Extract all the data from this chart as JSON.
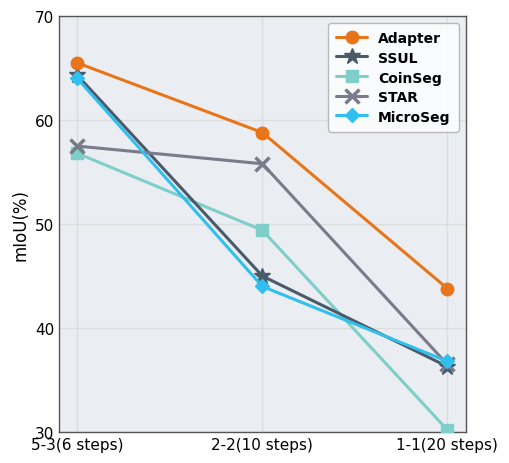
{
  "x_labels": [
    "5-3(6 steps)",
    "2-2(10 steps)",
    "1-1(20 steps)"
  ],
  "series": [
    {
      "name": "Adapter",
      "values": [
        65.5,
        58.8,
        43.8
      ],
      "color": "#E8751A",
      "marker": "o",
      "linewidth": 2.2,
      "markersize": 9,
      "zorder": 5
    },
    {
      "name": "SSUL",
      "values": [
        64.3,
        45.0,
        36.3
      ],
      "color": "#4A5A6A",
      "marker": "*",
      "linewidth": 2.2,
      "markersize": 12,
      "zorder": 4
    },
    {
      "name": "CoinSeg",
      "values": [
        56.8,
        49.4,
        30.2
      ],
      "color": "#7ECECA",
      "marker": "s",
      "linewidth": 2.2,
      "markersize": 8,
      "zorder": 3
    },
    {
      "name": "STAR",
      "values": [
        57.5,
        55.8,
        36.5
      ],
      "color": "#7A7A8A",
      "marker": "x",
      "linewidth": 2.2,
      "markersize": 10,
      "markeredgewidth": 2.5,
      "zorder": 4
    },
    {
      "name": "MicroSeg",
      "values": [
        64.0,
        44.0,
        36.8
      ],
      "color": "#30BFEF",
      "marker": "D",
      "linewidth": 2.2,
      "markersize": 7,
      "zorder": 5
    }
  ],
  "ylabel": "mIoU(%)",
  "ylim": [
    30,
    70
  ],
  "yticks": [
    30,
    40,
    50,
    60,
    70
  ],
  "grid": true,
  "grid_color": "#DDDDDD",
  "legend_loc": "upper right",
  "figsize": [
    5.1,
    4.64
  ],
  "dpi": 100,
  "plot_bg_color": "#EAEEF2",
  "fig_bg_color": "#FFFFFF",
  "spine_color": "#555555",
  "tick_labelsize": 11,
  "ylabel_fontsize": 12
}
